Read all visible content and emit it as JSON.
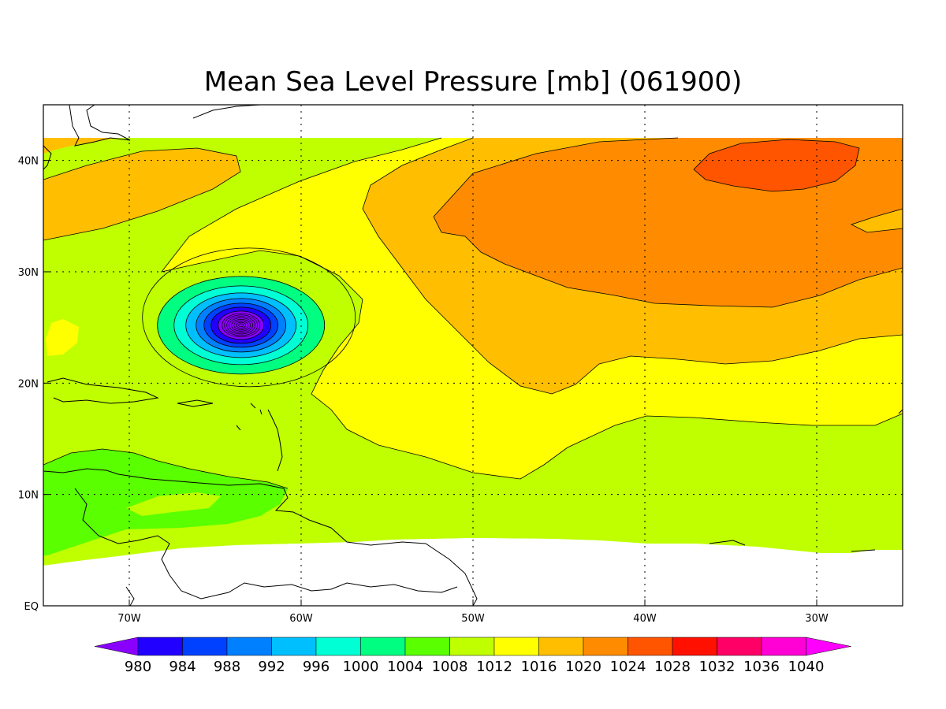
{
  "title": "Mean Sea Level Pressure [mb] (061900)",
  "map": {
    "lon_range": [
      -75,
      -25
    ],
    "lat_range": [
      0,
      45
    ],
    "data_lat_max": 42,
    "x_ticks": [
      "70W",
      "60W",
      "50W",
      "40W",
      "30W"
    ],
    "y_ticks": [
      "EQ",
      "10N",
      "20N",
      "30N",
      "40N"
    ],
    "grid": true,
    "low_center": {
      "lon": -63.5,
      "lat": 25.2,
      "min_mb": 980
    }
  },
  "colorbar": {
    "labels": [
      "980",
      "984",
      "988",
      "992",
      "996",
      "1000",
      "1004",
      "1008",
      "1012",
      "1016",
      "1020",
      "1024",
      "1028",
      "1032",
      "1036",
      "1040"
    ],
    "colors": [
      "#8a00ff",
      "#2200ff",
      "#0040ff",
      "#0080ff",
      "#00bfff",
      "#00ffd5",
      "#00ff80",
      "#5aff00",
      "#bfff00",
      "#ffff00",
      "#ffbf00",
      "#ff8c00",
      "#ff5500",
      "#ff1000",
      "#ff0066",
      "#ff00d5",
      "#ff00ff"
    ]
  }
}
